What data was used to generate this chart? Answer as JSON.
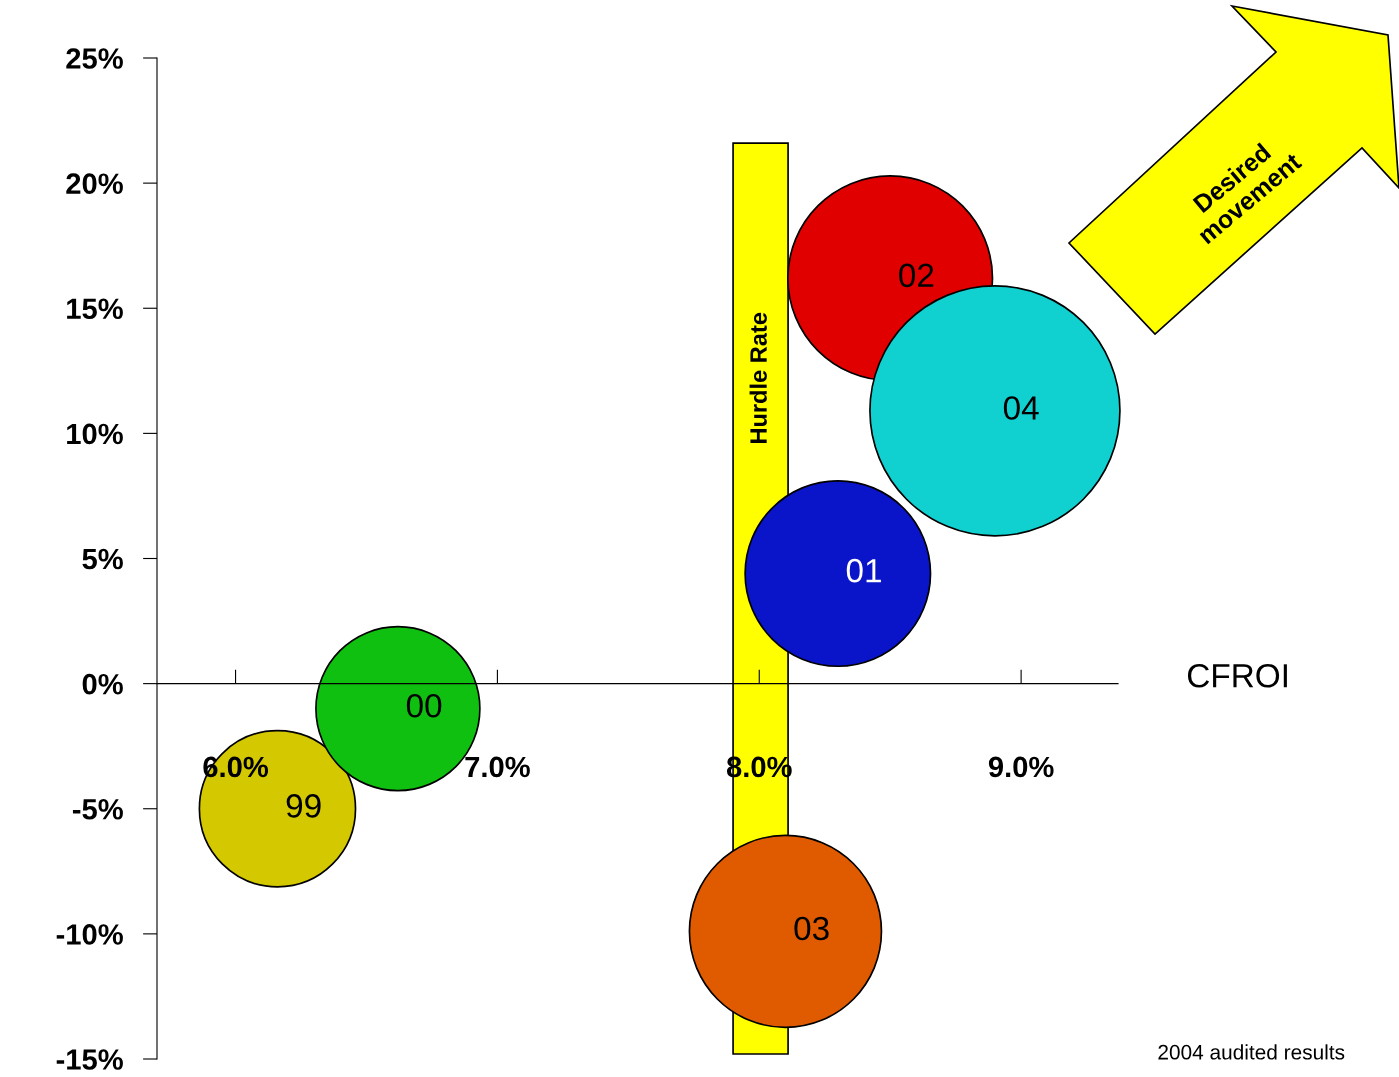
{
  "chart_data": {
    "type": "bubble",
    "xlabel": "CFROI",
    "series": [
      {
        "name": "99",
        "color": "#d4c800",
        "x": [
          6.16
        ],
        "values": [
          -5.0
        ],
        "sizes": [
          0.39
        ]
      },
      {
        "name": "00",
        "color": "#10c010",
        "x": [
          6.62
        ],
        "values": [
          -1.0
        ],
        "sizes": [
          0.43
        ]
      },
      {
        "name": "01",
        "color": "#0a14c8",
        "x": [
          8.3
        ],
        "values": [
          4.4
        ],
        "sizes": [
          0.55
        ]
      },
      {
        "name": "02",
        "color": "#e00000",
        "x": [
          8.5
        ],
        "values": [
          16.2
        ],
        "sizes": [
          0.67
        ]
      },
      {
        "name": "03",
        "color": "#e05a00",
        "x": [
          8.1
        ],
        "values": [
          -9.9
        ],
        "sizes": [
          0.59
        ]
      },
      {
        "name": "04",
        "color": "#10d0d0",
        "x": [
          8.9
        ],
        "values": [
          10.9
        ],
        "sizes": [
          1
        ]
      }
    ],
    "xlim": [
      5.7,
      9.37
    ],
    "ylim": [
      -15,
      25
    ],
    "xticks": [
      {
        "value": 6,
        "label": "6.0%"
      },
      {
        "value": 7,
        "label": "7.0%"
      },
      {
        "value": 8,
        "label": "8.0%"
      },
      {
        "value": 9,
        "label": "9.0%"
      }
    ],
    "yticks": [
      {
        "value": -15,
        "label": "-15%"
      },
      {
        "value": -10,
        "label": "-10%"
      },
      {
        "value": -5,
        "label": "-5%"
      },
      {
        "value": 0,
        "label": "0%"
      },
      {
        "value": 5,
        "label": "5%"
      },
      {
        "value": 10,
        "label": "10%"
      },
      {
        "value": 15,
        "label": "15%"
      },
      {
        "value": 20,
        "label": "20%"
      },
      {
        "value": 25,
        "label": "25%"
      }
    ],
    "bands": [
      {
        "axis": "x",
        "from": 7.9,
        "to": 8.11,
        "label": "Hurdle Rate",
        "color": "#ffff00"
      }
    ],
    "annotations": [
      "Desired\nmovement",
      "2004 audited results"
    ],
    "grid": false,
    "legend": false
  }
}
